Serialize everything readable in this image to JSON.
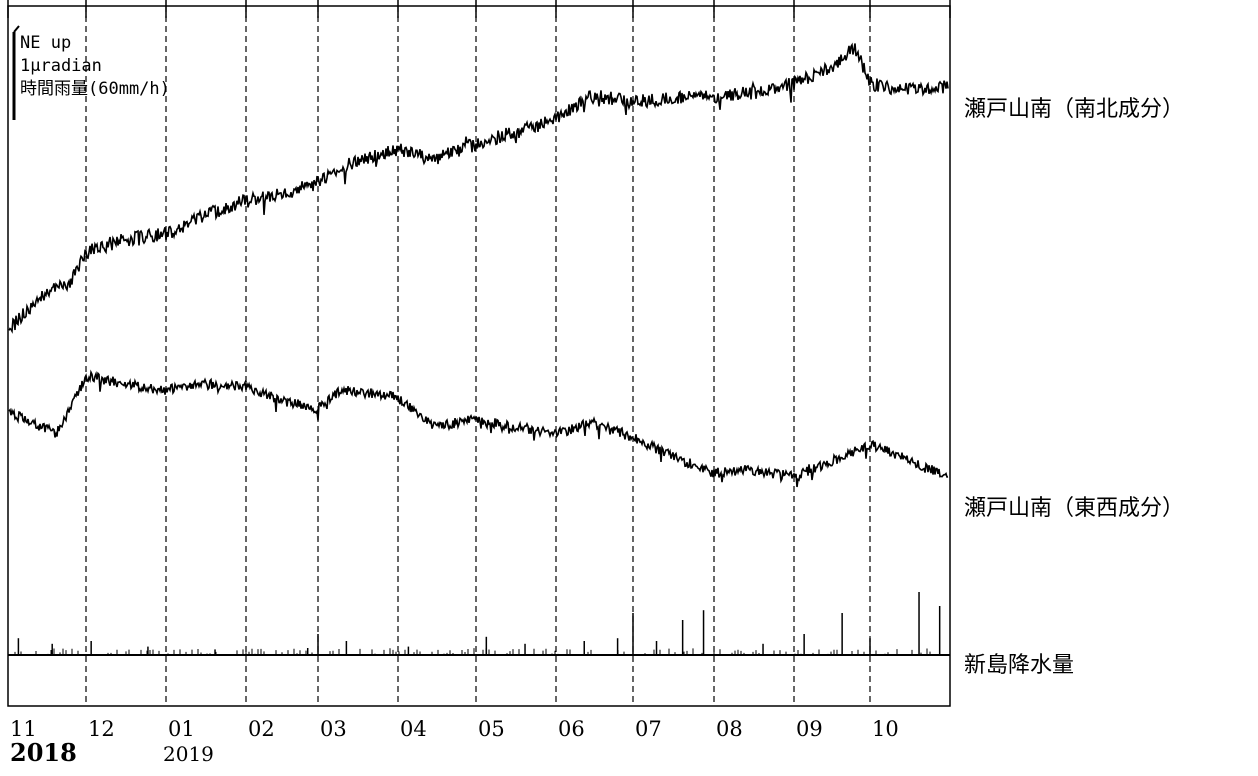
{
  "legend": {
    "line1": "NE up",
    "line2": "1μradian",
    "line3": "時間雨量(60mm/h)"
  },
  "series_labels": {
    "ns": "瀬戸山南（南北成分）",
    "ew": "瀬戸山南（東西成分）",
    "rain": "新島降水量"
  },
  "months": [
    "11",
    "12",
    "01",
    "02",
    "03",
    "04",
    "05",
    "06",
    "07",
    "08",
    "09",
    "10"
  ],
  "years": {
    "start": "2018",
    "second": "2019"
  },
  "colors": {
    "line": "#000000",
    "grid": "#000000",
    "background": "#ffffff"
  },
  "chart_data": {
    "type": "line",
    "x_unit": "month",
    "x_range": [
      "2018-11",
      "2019-10"
    ],
    "y_axis": "hidden",
    "scale_bar": "1μradian",
    "rain_scale": "60mm/h",
    "vertical_gridlines": "dashed, at each month boundary",
    "series": [
      {
        "name": "瀬戸山南（南北成分）",
        "points": [
          [
            "2018-11-01",
            0.0
          ],
          [
            "2018-11-15",
            0.6
          ],
          [
            "2018-11-25",
            0.8
          ],
          [
            "2018-12-01",
            1.3
          ],
          [
            "2018-12-15",
            1.5
          ],
          [
            "2019-01-01",
            1.6
          ],
          [
            "2019-01-15",
            1.9
          ],
          [
            "2019-02-01",
            2.15
          ],
          [
            "2019-02-15",
            2.25
          ],
          [
            "2019-03-01",
            2.45
          ],
          [
            "2019-03-15",
            2.8
          ],
          [
            "2019-04-01",
            3.0
          ],
          [
            "2019-04-15",
            2.85
          ],
          [
            "2019-05-01",
            3.1
          ],
          [
            "2019-05-15",
            3.3
          ],
          [
            "2019-06-01",
            3.5
          ],
          [
            "2019-06-15",
            3.9
          ],
          [
            "2019-07-01",
            3.8
          ],
          [
            "2019-07-15",
            3.85
          ],
          [
            "2019-08-01",
            3.9
          ],
          [
            "2019-08-15",
            3.95
          ],
          [
            "2019-09-01",
            4.1
          ],
          [
            "2019-09-15",
            4.35
          ],
          [
            "2019-09-25",
            4.7
          ],
          [
            "2019-10-01",
            4.1
          ],
          [
            "2019-10-15",
            4.0
          ],
          [
            "2019-10-31",
            4.05
          ]
        ]
      },
      {
        "name": "瀬戸山南（東西成分）",
        "points": [
          [
            "2018-11-01",
            0.0
          ],
          [
            "2018-11-20",
            -0.3
          ],
          [
            "2018-12-01",
            0.5
          ],
          [
            "2018-12-15",
            0.4
          ],
          [
            "2019-01-01",
            0.3
          ],
          [
            "2019-01-15",
            0.4
          ],
          [
            "2019-02-01",
            0.35
          ],
          [
            "2019-02-15",
            0.15
          ],
          [
            "2019-03-01",
            0.05
          ],
          [
            "2019-03-10",
            0.3
          ],
          [
            "2019-03-25",
            0.25
          ],
          [
            "2019-04-01",
            0.2
          ],
          [
            "2019-04-15",
            -0.2
          ],
          [
            "2019-05-01",
            -0.1
          ],
          [
            "2019-05-15",
            -0.2
          ],
          [
            "2019-06-01",
            -0.3
          ],
          [
            "2019-06-15",
            -0.15
          ],
          [
            "2019-07-01",
            -0.35
          ],
          [
            "2019-07-15",
            -0.6
          ],
          [
            "2019-08-01",
            -0.85
          ],
          [
            "2019-08-15",
            -0.8
          ],
          [
            "2019-09-01",
            -0.9
          ],
          [
            "2019-09-15",
            -0.7
          ],
          [
            "2019-10-01",
            -0.45
          ],
          [
            "2019-10-15",
            -0.65
          ],
          [
            "2019-10-31",
            -0.9
          ]
        ]
      },
      {
        "name": "新島降水量",
        "unit": "mm/h",
        "events": [
          [
            "2018-11-05",
            12
          ],
          [
            "2018-11-18",
            8
          ],
          [
            "2018-12-03",
            10
          ],
          [
            "2018-12-25",
            6
          ],
          [
            "2019-01-20",
            4
          ],
          [
            "2019-02-25",
            5
          ],
          [
            "2019-03-01",
            15
          ],
          [
            "2019-03-12",
            10
          ],
          [
            "2019-04-05",
            6
          ],
          [
            "2019-05-05",
            13
          ],
          [
            "2019-05-20",
            8
          ],
          [
            "2019-06-12",
            10
          ],
          [
            "2019-06-25",
            12
          ],
          [
            "2019-07-01",
            30
          ],
          [
            "2019-07-10",
            10
          ],
          [
            "2019-07-20",
            25
          ],
          [
            "2019-07-28",
            32
          ],
          [
            "2019-08-20",
            8
          ],
          [
            "2019-09-05",
            15
          ],
          [
            "2019-09-20",
            30
          ],
          [
            "2019-10-01",
            12
          ],
          [
            "2019-10-20",
            45
          ],
          [
            "2019-10-28",
            35
          ]
        ]
      }
    ]
  }
}
